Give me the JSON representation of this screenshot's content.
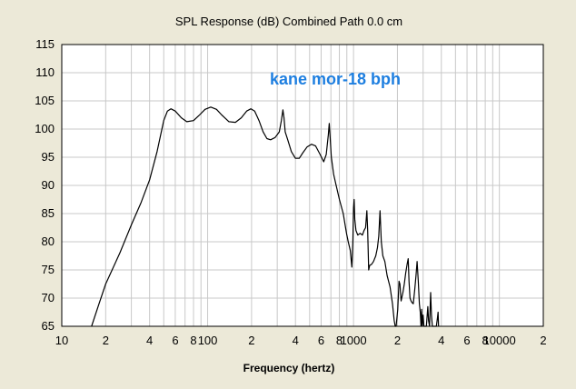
{
  "chart_data": {
    "type": "line",
    "title": "SPL Response (dB)   Combined   Path 0.0 cm",
    "xlabel": "Frequency (hertz)",
    "ylabel": "",
    "annotation": "kane mor-18 bph",
    "x_scale": "log",
    "xlim": [
      10,
      20000
    ],
    "ylim": [
      65,
      115
    ],
    "y_ticks": [
      65,
      70,
      75,
      80,
      85,
      90,
      95,
      100,
      105,
      110,
      115
    ],
    "x_ticks": [
      {
        "value": 10,
        "label": "10"
      },
      {
        "value": 20,
        "label": "2"
      },
      {
        "value": 40,
        "label": "4"
      },
      {
        "value": 60,
        "label": "6"
      },
      {
        "value": 80,
        "label": "8"
      },
      {
        "value": 100,
        "label": "100"
      },
      {
        "value": 200,
        "label": "2"
      },
      {
        "value": 400,
        "label": "4"
      },
      {
        "value": 600,
        "label": "6"
      },
      {
        "value": 800,
        "label": "8"
      },
      {
        "value": 1000,
        "label": "1000"
      },
      {
        "value": 2000,
        "label": "2"
      },
      {
        "value": 4000,
        "label": "4"
      },
      {
        "value": 6000,
        "label": "6"
      },
      {
        "value": 8000,
        "label": "8"
      },
      {
        "value": 10000,
        "label": "10000"
      },
      {
        "value": 20000,
        "label": "2"
      }
    ],
    "grid": true,
    "colors": {
      "background": "#ece9d8",
      "plot_background": "#ffffff",
      "grid": "#c8c8c8",
      "line": "#000000",
      "annotation": "#1e7fe0"
    },
    "series": [
      {
        "points": [
          [
            16,
            65
          ],
          [
            18,
            69
          ],
          [
            20,
            72.5
          ],
          [
            25,
            78
          ],
          [
            30,
            83
          ],
          [
            35,
            87
          ],
          [
            40,
            91
          ],
          [
            45,
            96
          ],
          [
            50,
            101.5
          ],
          [
            53,
            103.2
          ],
          [
            56,
            103.6
          ],
          [
            60,
            103.2
          ],
          [
            66,
            102
          ],
          [
            72,
            101.3
          ],
          [
            80,
            101.5
          ],
          [
            88,
            102.5
          ],
          [
            96,
            103.5
          ],
          [
            105,
            103.9
          ],
          [
            115,
            103.5
          ],
          [
            125,
            102.5
          ],
          [
            140,
            101.3
          ],
          [
            155,
            101.2
          ],
          [
            170,
            102
          ],
          [
            185,
            103.2
          ],
          [
            198,
            103.6
          ],
          [
            210,
            103.2
          ],
          [
            225,
            101.5
          ],
          [
            240,
            99.5
          ],
          [
            255,
            98.3
          ],
          [
            270,
            98.1
          ],
          [
            290,
            98.5
          ],
          [
            310,
            99.5
          ],
          [
            320,
            101.5
          ],
          [
            328,
            103.4
          ],
          [
            334,
            102
          ],
          [
            340,
            99.5
          ],
          [
            355,
            98
          ],
          [
            375,
            96
          ],
          [
            400,
            94.8
          ],
          [
            425,
            94.8
          ],
          [
            450,
            95.8
          ],
          [
            480,
            96.8
          ],
          [
            515,
            97.3
          ],
          [
            550,
            97
          ],
          [
            590,
            95.5
          ],
          [
            625,
            94.2
          ],
          [
            650,
            95.5
          ],
          [
            672,
            99
          ],
          [
            682,
            101
          ],
          [
            690,
            99
          ],
          [
            705,
            95
          ],
          [
            730,
            92
          ],
          [
            760,
            90
          ],
          [
            800,
            87.5
          ],
          [
            850,
            85
          ],
          [
            895,
            81.5
          ],
          [
            920,
            80
          ],
          [
            950,
            78.5
          ],
          [
            975,
            75.5
          ],
          [
            990,
            80
          ],
          [
            1000,
            86
          ],
          [
            1010,
            87.5
          ],
          [
            1020,
            84
          ],
          [
            1040,
            82
          ],
          [
            1070,
            81.2
          ],
          [
            1110,
            81.5
          ],
          [
            1150,
            81.2
          ],
          [
            1180,
            82
          ],
          [
            1210,
            82.5
          ],
          [
            1235,
            85.5
          ],
          [
            1250,
            82
          ],
          [
            1270,
            75
          ],
          [
            1290,
            75.8
          ],
          [
            1330,
            76
          ],
          [
            1370,
            76.5
          ],
          [
            1420,
            77.5
          ],
          [
            1460,
            79
          ],
          [
            1490,
            81
          ],
          [
            1520,
            85.5
          ],
          [
            1550,
            80
          ],
          [
            1590,
            77.5
          ],
          [
            1640,
            76.5
          ],
          [
            1700,
            74
          ],
          [
            1780,
            72
          ],
          [
            1850,
            69
          ],
          [
            1900,
            66
          ],
          [
            1930,
            65
          ],
          [
            1960,
            65
          ],
          [
            2010,
            68
          ],
          [
            2050,
            73
          ],
          [
            2080,
            72.5
          ],
          [
            2120,
            69.5
          ],
          [
            2180,
            71
          ],
          [
            2230,
            72.5
          ],
          [
            2280,
            74.5
          ],
          [
            2330,
            76
          ],
          [
            2370,
            77
          ],
          [
            2400,
            73
          ],
          [
            2440,
            70
          ],
          [
            2480,
            69.5
          ],
          [
            2520,
            69.2
          ],
          [
            2570,
            69
          ],
          [
            2630,
            71.5
          ],
          [
            2680,
            74
          ],
          [
            2730,
            76.5
          ],
          [
            2780,
            73
          ],
          [
            2830,
            69
          ],
          [
            2870,
            67.5
          ],
          [
            2900,
            65
          ],
          [
            2930,
            68
          ],
          [
            2960,
            65
          ],
          [
            3000,
            67
          ],
          [
            3040,
            65
          ],
          [
            3100,
            65
          ],
          [
            3160,
            65
          ],
          [
            3230,
            68.5
          ],
          [
            3270,
            66
          ],
          [
            3320,
            65
          ],
          [
            3380,
            71
          ],
          [
            3420,
            67
          ],
          [
            3470,
            65
          ],
          [
            3520,
            65
          ],
          [
            3700,
            65
          ],
          [
            3760,
            66.5
          ],
          [
            3800,
            67.5
          ],
          [
            3830,
            65
          ]
        ]
      }
    ]
  }
}
